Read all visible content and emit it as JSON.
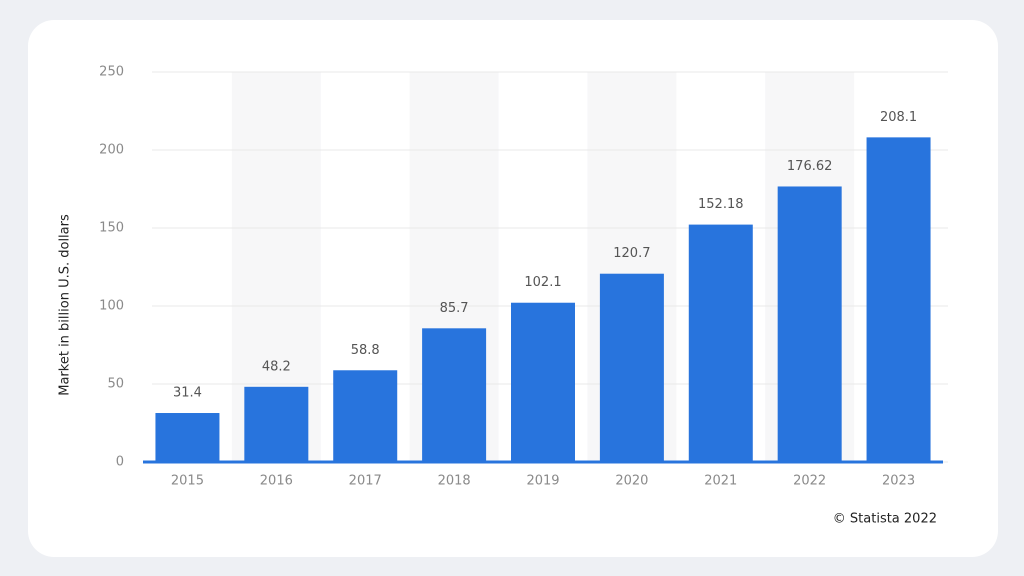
{
  "chart_data": {
    "type": "bar",
    "y_label": "Market in billion U.S. dollars",
    "categories": [
      "2015",
      "2016",
      "2017",
      "2018",
      "2019",
      "2020",
      "2021",
      "2022",
      "2023"
    ],
    "values": [
      31.4,
      48.2,
      58.8,
      85.7,
      102.1,
      120.7,
      152.18,
      176.62,
      208.1
    ],
    "color": "#2874dd",
    "ylim": [
      0,
      250
    ],
    "yticks": [
      0,
      50,
      100,
      150,
      200,
      250
    ],
    "grid": true,
    "alternate_band_shading": true,
    "credit": "© Statista 2022"
  }
}
